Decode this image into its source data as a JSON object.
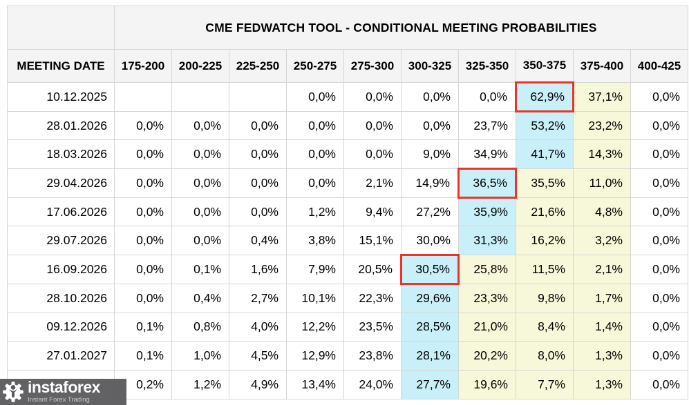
{
  "colors": {
    "cyan": "#c9f0f8",
    "yellow": "#f7f7d9",
    "red_outline": "#e8342a",
    "header_bg": "#f4f4f4",
    "border": "#d6d6d6",
    "watermark_bg": "#58585a"
  },
  "watermark": {
    "brand": "instaforex",
    "tagline": "Instant Forex Trading"
  },
  "chart_data": {
    "type": "table",
    "title": "CME FEDWATCH TOOL - CONDITIONAL MEETING PROBABILITIES",
    "columns": [
      "MEETING DATE",
      "175-200",
      "200-225",
      "225-250",
      "250-275",
      "275-300",
      "300-325",
      "325-350",
      "350-375",
      "375-400",
      "400-425"
    ],
    "rows": [
      {
        "meeting_date": "10.12.2025",
        "values": [
          "",
          "",
          "",
          "0,0%",
          "0,0%",
          "0,0%",
          "0,0%",
          "62,9%",
          "37,1%",
          "0,0%"
        ],
        "cyan_col": "350-375",
        "yellow_cols": [
          "375-400"
        ],
        "red_outline": true
      },
      {
        "meeting_date": "28.01.2026",
        "values": [
          "0,0%",
          "0,0%",
          "0,0%",
          "0,0%",
          "0,0%",
          "0,0%",
          "23,7%",
          "53,2%",
          "23,2%",
          "0,0%"
        ],
        "cyan_col": "350-375",
        "yellow_cols": [
          "375-400"
        ],
        "red_outline": false
      },
      {
        "meeting_date": "18.03.2026",
        "values": [
          "0,0%",
          "0,0%",
          "0,0%",
          "0,0%",
          "0,0%",
          "9,0%",
          "34,9%",
          "41,7%",
          "14,3%",
          "0,0%"
        ],
        "cyan_col": "350-375",
        "yellow_cols": [
          "375-400"
        ],
        "red_outline": false
      },
      {
        "meeting_date": "29.04.2026",
        "values": [
          "0,0%",
          "0,0%",
          "0,0%",
          "0,0%",
          "2,1%",
          "14,9%",
          "36,5%",
          "35,5%",
          "11,0%",
          "0,0%"
        ],
        "cyan_col": "325-350",
        "yellow_cols": [
          "350-375",
          "375-400"
        ],
        "red_outline": true
      },
      {
        "meeting_date": "17.06.2026",
        "values": [
          "0,0%",
          "0,0%",
          "0,0%",
          "1,2%",
          "9,4%",
          "27,2%",
          "35,9%",
          "21,6%",
          "4,8%",
          "0,0%"
        ],
        "cyan_col": "325-350",
        "yellow_cols": [
          "350-375",
          "375-400"
        ],
        "red_outline": false
      },
      {
        "meeting_date": "29.07.2026",
        "values": [
          "0,0%",
          "0,0%",
          "0,4%",
          "3,8%",
          "15,1%",
          "30,0%",
          "31,3%",
          "16,2%",
          "3,2%",
          "0,0%"
        ],
        "cyan_col": "325-350",
        "yellow_cols": [
          "350-375",
          "375-400"
        ],
        "red_outline": false
      },
      {
        "meeting_date": "16.09.2026",
        "values": [
          "0,0%",
          "0,1%",
          "1,6%",
          "7,9%",
          "20,5%",
          "30,5%",
          "25,8%",
          "11,5%",
          "2,1%",
          "0,0%"
        ],
        "cyan_col": "300-325",
        "yellow_cols": [
          "325-350",
          "350-375",
          "375-400"
        ],
        "red_outline": true
      },
      {
        "meeting_date": "28.10.2026",
        "values": [
          "0,0%",
          "0,4%",
          "2,7%",
          "10,1%",
          "22,3%",
          "29,6%",
          "23,3%",
          "9,8%",
          "1,7%",
          "0,0%"
        ],
        "cyan_col": "300-325",
        "yellow_cols": [
          "325-350",
          "350-375",
          "375-400"
        ],
        "red_outline": false
      },
      {
        "meeting_date": "09.12.2026",
        "values": [
          "0,1%",
          "0,8%",
          "4,0%",
          "12,2%",
          "23,5%",
          "28,5%",
          "21,0%",
          "8,4%",
          "1,4%",
          "0,0%"
        ],
        "cyan_col": "300-325",
        "yellow_cols": [
          "325-350",
          "350-375",
          "375-400"
        ],
        "red_outline": false
      },
      {
        "meeting_date": "27.01.2027",
        "values": [
          "0,1%",
          "1,0%",
          "4,5%",
          "12,9%",
          "23,8%",
          "28,1%",
          "20,2%",
          "8,0%",
          "1,3%",
          "0,0%"
        ],
        "cyan_col": "300-325",
        "yellow_cols": [
          "325-350",
          "350-375",
          "375-400"
        ],
        "red_outline": false
      },
      {
        "meeting_date": "",
        "values": [
          "0,2%",
          "1,2%",
          "4,9%",
          "13,4%",
          "24,0%",
          "27,7%",
          "19,6%",
          "7,7%",
          "1,3%",
          "0,0%"
        ],
        "cyan_col": "300-325",
        "yellow_cols": [
          "325-350",
          "350-375",
          "375-400"
        ],
        "red_outline": false
      }
    ]
  }
}
